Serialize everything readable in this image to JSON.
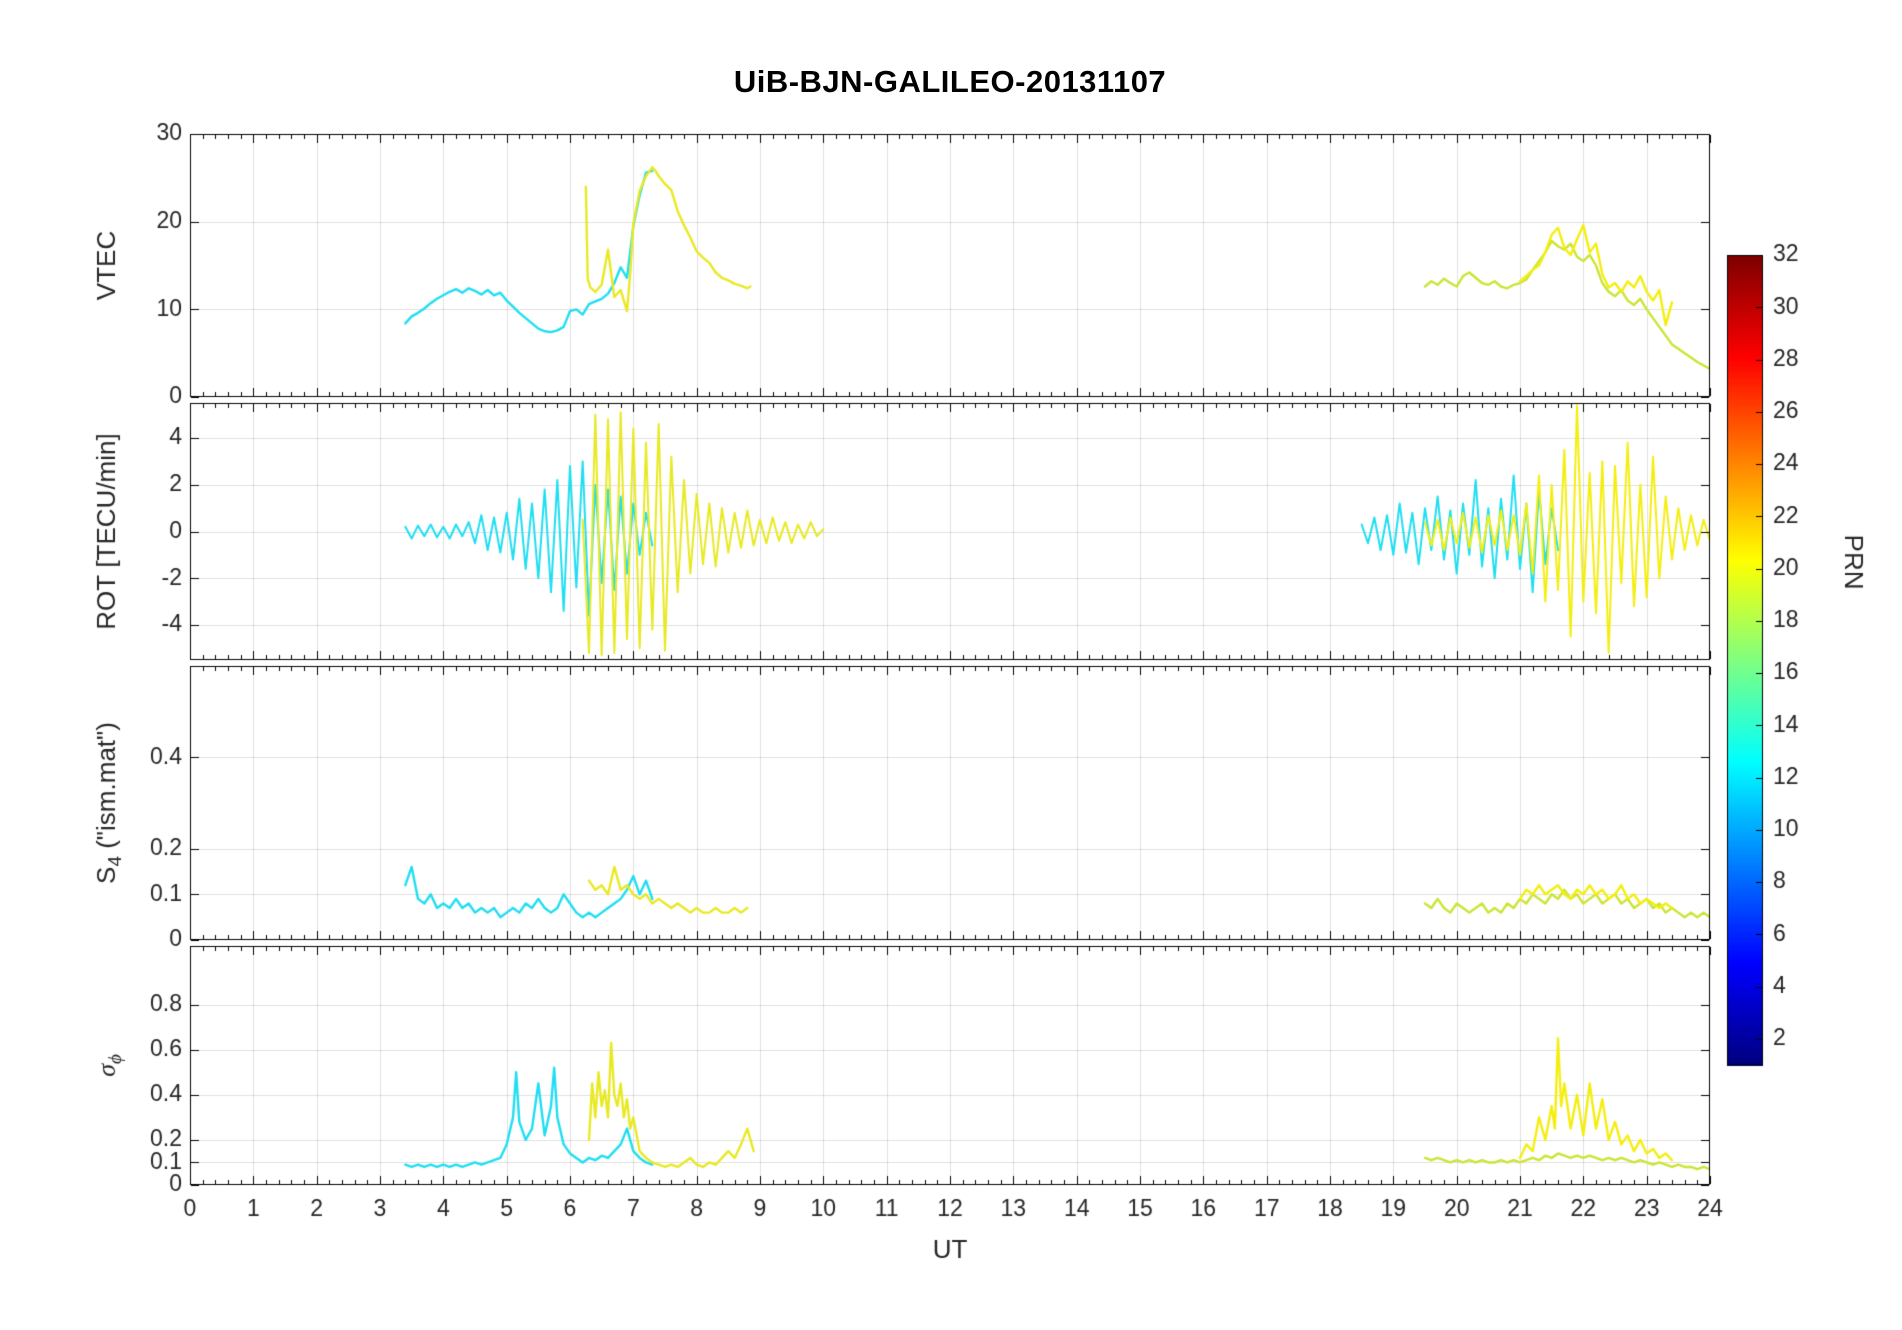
{
  "figure": {
    "background": "#ffffff",
    "axis_text_color": "#262626",
    "grid_color": "rgba(0,0,0,0.12)"
  },
  "chart_data": {
    "type": "line",
    "title": "UiB-BJN-GALILEO-20131107",
    "xlabel": "UT",
    "xlim": [
      0,
      24
    ],
    "xticks": [
      0,
      1,
      2,
      3,
      4,
      5,
      6,
      7,
      8,
      9,
      10,
      11,
      12,
      13,
      14,
      15,
      16,
      17,
      18,
      19,
      20,
      21,
      22,
      23,
      24
    ],
    "grid": true,
    "legend": "none",
    "colorbar": {
      "label": "PRN",
      "colormap": "jet",
      "range": [
        1,
        32
      ],
      "ticks": [
        2,
        4,
        6,
        8,
        10,
        12,
        14,
        16,
        18,
        20,
        22,
        24,
        26,
        28,
        30,
        32
      ]
    },
    "subplots": [
      {
        "name": "vtec",
        "ylabel_segments": [
          {
            "t": "VTEC"
          }
        ],
        "ylim": [
          0,
          30
        ],
        "yticks": [
          0,
          10,
          20,
          30
        ],
        "series": [
          {
            "name": "cyan-trace (PRN ~12)",
            "color": "#1fdef2",
            "x0": 3.4,
            "dx": 0.1,
            "y": [
              8.4,
              9.2,
              9.6,
              10.1,
              10.7,
              11.2,
              11.6,
              12.0,
              12.3,
              11.9,
              12.4,
              12.1,
              11.7,
              12.2,
              11.6,
              11.9,
              11.0,
              10.3,
              9.6,
              9.0,
              8.4,
              7.8,
              7.5,
              7.4,
              7.6,
              8.0,
              9.8,
              10.0,
              9.4,
              10.6,
              10.9,
              11.2,
              11.8,
              13.0,
              14.8,
              13.6,
              19.5,
              23.0,
              25.6,
              25.8
            ]
          },
          {
            "name": "yellow-trace morning (PRN ~20)",
            "color": "#e8e922",
            "x": [
              6.25,
              6.28,
              6.32,
              6.4,
              6.5,
              6.6,
              6.7,
              6.8,
              6.9,
              6.95,
              7.0,
              7.1,
              7.2,
              7.3,
              7.35,
              7.4,
              7.5,
              7.6,
              7.7,
              7.8,
              7.9,
              8.0,
              8.1,
              8.2,
              8.3,
              8.4,
              8.5,
              8.6,
              8.7,
              8.8,
              8.85
            ],
            "y": [
              24.0,
              13.5,
              12.5,
              12.0,
              12.8,
              16.8,
              11.4,
              12.2,
              9.8,
              14.0,
              19.8,
              23.5,
              25.2,
              26.2,
              25.8,
              25.2,
              24.3,
              23.6,
              21.2,
              19.6,
              18.2,
              16.6,
              15.9,
              15.3,
              14.2,
              13.6,
              13.3,
              12.9,
              12.7,
              12.4,
              12.6
            ]
          },
          {
            "name": "yellow-green-trace evening (PRN ~18)",
            "color": "#cbe433",
            "x0": 19.5,
            "dx": 0.1,
            "y": [
              12.6,
              13.2,
              12.8,
              13.5,
              13.0,
              12.6,
              13.8,
              14.2,
              13.6,
              13.0,
              12.8,
              13.2,
              12.6,
              12.4,
              12.8,
              13.0,
              13.4,
              14.5,
              15.5,
              16.5,
              17.8,
              17.2,
              16.8,
              17.5,
              16.0,
              15.5,
              16.2,
              15.0,
              13.0,
              12.0,
              11.5,
              12.2,
              11.0,
              10.5,
              11.2,
              10.0,
              9.0,
              8.0,
              7.0,
              6.0,
              5.5,
              5.0,
              4.5,
              4.0,
              3.6,
              3.2
            ]
          },
          {
            "name": "yellow-trace evening (PRN ~20)",
            "color": "#f4ee0f",
            "x0": 21.0,
            "dx": 0.1,
            "y": [
              13.2,
              13.8,
              14.5,
              15.0,
              16.5,
              18.5,
              19.3,
              17.0,
              16.2,
              18.0,
              19.6,
              16.5,
              17.5,
              14.0,
              12.5,
              13.0,
              12.0,
              13.2,
              12.5,
              13.8,
              12.0,
              11.0,
              12.2,
              8.2,
              10.8
            ]
          }
        ]
      },
      {
        "name": "rot",
        "ylabel_segments": [
          {
            "t": "ROT [TECU/min]"
          }
        ],
        "ylim": [
          -5.5,
          5.5
        ],
        "yticks": [
          -4,
          -2,
          0,
          2,
          4
        ],
        "series": [
          {
            "name": "cyan-trace (PRN ~12)",
            "color": "#1fdef2",
            "x0": 3.4,
            "dx": 0.1,
            "y": [
              0.2,
              -0.3,
              0.25,
              -0.2,
              0.3,
              -0.25,
              0.2,
              -0.3,
              0.3,
              -0.2,
              0.4,
              -0.5,
              0.7,
              -0.8,
              0.6,
              -0.9,
              0.8,
              -1.2,
              1.4,
              -1.6,
              1.2,
              -2.0,
              1.8,
              -2.6,
              2.2,
              -3.4,
              2.8,
              -2.4,
              3.0,
              -3.6,
              2.0,
              -2.2,
              1.8,
              -2.5,
              1.5,
              -1.8,
              1.2,
              -1.0,
              0.8,
              -0.6
            ]
          },
          {
            "name": "yellow-trace morning (PRN ~20)",
            "color": "#e8e922",
            "x0": 6.2,
            "dx": 0.1,
            "y": [
              0.5,
              -5.2,
              5.0,
              -5.3,
              4.8,
              -5.2,
              5.1,
              -4.6,
              4.4,
              -5.0,
              3.8,
              -4.2,
              4.6,
              -5.1,
              3.2,
              -2.6,
              2.2,
              -1.8,
              1.6,
              -1.4,
              1.2,
              -1.5,
              1.0,
              -0.9,
              0.8,
              -0.7,
              0.9,
              -0.6,
              0.5,
              -0.5,
              0.6,
              -0.4,
              0.4,
              -0.5,
              0.3,
              -0.3,
              0.4,
              -0.2,
              0.1
            ]
          },
          {
            "name": "cyan-trace evening (PRN ~12)",
            "color": "#1fdef2",
            "x0": 18.5,
            "dx": 0.1,
            "y": [
              0.3,
              -0.5,
              0.6,
              -0.8,
              0.7,
              -1.0,
              1.2,
              -0.9,
              0.8,
              -1.4,
              1.0,
              -0.8,
              1.5,
              -1.2,
              0.9,
              -1.8,
              1.2,
              -1.0,
              2.2,
              -1.5,
              1.0,
              -2.0,
              1.4,
              -1.2,
              2.4,
              -1.6,
              1.2,
              -2.6,
              1.8,
              -1.4,
              1.0,
              -0.8
            ]
          },
          {
            "name": "yellow-trace evening (PRN ~20)",
            "color": "#f4ee0f",
            "x0": 19.5,
            "dx": 0.1,
            "y": [
              0.4,
              -0.6,
              0.5,
              -0.8,
              0.6,
              -0.5,
              0.8,
              -0.7,
              0.6,
              -0.9,
              0.7,
              -0.6,
              0.9,
              -0.8,
              0.7,
              -1.0,
              1.2,
              -1.8,
              2.4,
              -3.0,
              2.0,
              -2.5,
              3.5,
              -4.5,
              5.4,
              -3.0,
              2.5,
              -3.5,
              3.0,
              -5.2,
              2.8,
              -2.2,
              3.8,
              -3.2,
              2.0,
              -2.8,
              3.2,
              -2.0,
              1.5,
              -1.2,
              1.0,
              -0.8,
              0.7,
              -0.6,
              0.5,
              -0.4
            ]
          }
        ]
      },
      {
        "name": "s4",
        "ylabel_segments": [
          {
            "t": "S"
          },
          {
            "t": "4",
            "sub": true
          },
          {
            "t": " (\"ism.mat\")"
          }
        ],
        "ylim": [
          0,
          0.6
        ],
        "yticks": [
          0,
          0.1,
          0.2,
          0.4
        ],
        "series": [
          {
            "name": "cyan-trace (PRN ~12)",
            "color": "#1fdef2",
            "x0": 3.4,
            "dx": 0.1,
            "y": [
              0.12,
              0.16,
              0.09,
              0.08,
              0.1,
              0.07,
              0.08,
              0.07,
              0.09,
              0.07,
              0.08,
              0.06,
              0.07,
              0.06,
              0.07,
              0.05,
              0.06,
              0.07,
              0.06,
              0.08,
              0.07,
              0.09,
              0.07,
              0.06,
              0.07,
              0.1,
              0.08,
              0.06,
              0.05,
              0.06,
              0.05,
              0.06,
              0.07,
              0.08,
              0.09,
              0.11,
              0.14,
              0.1,
              0.13,
              0.09
            ]
          },
          {
            "name": "yellow-trace morning (PRN ~20)",
            "color": "#e8e922",
            "x0": 6.3,
            "dx": 0.1,
            "y": [
              0.13,
              0.11,
              0.12,
              0.1,
              0.16,
              0.11,
              0.12,
              0.1,
              0.09,
              0.1,
              0.08,
              0.09,
              0.08,
              0.07,
              0.08,
              0.07,
              0.06,
              0.07,
              0.06,
              0.06,
              0.07,
              0.06,
              0.06,
              0.07,
              0.06,
              0.07
            ]
          },
          {
            "name": "yellow-green-trace evening (PRN ~18)",
            "color": "#cbe433",
            "x0": 19.5,
            "dx": 0.1,
            "y": [
              0.08,
              0.07,
              0.09,
              0.07,
              0.06,
              0.08,
              0.07,
              0.06,
              0.07,
              0.08,
              0.06,
              0.07,
              0.06,
              0.08,
              0.07,
              0.09,
              0.08,
              0.1,
              0.09,
              0.08,
              0.1,
              0.09,
              0.11,
              0.09,
              0.1,
              0.08,
              0.09,
              0.1,
              0.08,
              0.09,
              0.1,
              0.08,
              0.09,
              0.07,
              0.08,
              0.09,
              0.07,
              0.08,
              0.06,
              0.07,
              0.06,
              0.05,
              0.06,
              0.05,
              0.06,
              0.05
            ]
          },
          {
            "name": "yellow-trace evening (PRN ~20)",
            "color": "#f4ee0f",
            "x0": 21.0,
            "dx": 0.1,
            "y": [
              0.09,
              0.11,
              0.1,
              0.12,
              0.1,
              0.11,
              0.12,
              0.1,
              0.09,
              0.11,
              0.1,
              0.12,
              0.1,
              0.11,
              0.09,
              0.1,
              0.12,
              0.09,
              0.1,
              0.08,
              0.09,
              0.08,
              0.07,
              0.08,
              0.07
            ]
          }
        ]
      },
      {
        "name": "sigma-phi",
        "ylabel_segments": [
          {
            "t": "σ",
            "italic": true
          },
          {
            "t": "ϕ",
            "sub": true,
            "italic": true
          }
        ],
        "ylim": [
          0,
          1.06
        ],
        "yticks": [
          0,
          0.1,
          0.2,
          0.4,
          0.6,
          0.8
        ],
        "series": [
          {
            "name": "cyan-trace (PRN ~12)",
            "color": "#1fdef2",
            "x": [
              3.4,
              3.5,
              3.6,
              3.7,
              3.8,
              3.9,
              4.0,
              4.1,
              4.2,
              4.3,
              4.4,
              4.5,
              4.6,
              4.7,
              4.8,
              4.9,
              5.0,
              5.1,
              5.15,
              5.2,
              5.3,
              5.4,
              5.5,
              5.6,
              5.7,
              5.75,
              5.8,
              5.9,
              6.0,
              6.1,
              6.2,
              6.3,
              6.4,
              6.5,
              6.6,
              6.7,
              6.8,
              6.9,
              7.0,
              7.1,
              7.2,
              7.3
            ],
            "y": [
              0.09,
              0.08,
              0.09,
              0.08,
              0.09,
              0.08,
              0.09,
              0.08,
              0.09,
              0.08,
              0.09,
              0.1,
              0.09,
              0.1,
              0.11,
              0.12,
              0.18,
              0.3,
              0.5,
              0.28,
              0.2,
              0.25,
              0.45,
              0.22,
              0.35,
              0.52,
              0.3,
              0.18,
              0.14,
              0.12,
              0.1,
              0.12,
              0.11,
              0.13,
              0.12,
              0.15,
              0.18,
              0.25,
              0.15,
              0.12,
              0.1,
              0.09
            ]
          },
          {
            "name": "yellow-trace morning (PRN ~20)",
            "color": "#e8e922",
            "x": [
              6.3,
              6.35,
              6.4,
              6.45,
              6.5,
              6.55,
              6.6,
              6.65,
              6.7,
              6.75,
              6.8,
              6.85,
              6.9,
              6.95,
              7.0,
              7.1,
              7.2,
              7.3,
              7.4,
              7.5,
              7.6,
              7.7,
              7.8,
              7.9,
              8.0,
              8.1,
              8.2,
              8.3,
              8.4,
              8.5,
              8.6,
              8.7,
              8.8,
              8.9
            ],
            "y": [
              0.2,
              0.45,
              0.3,
              0.5,
              0.35,
              0.42,
              0.3,
              0.63,
              0.4,
              0.35,
              0.45,
              0.3,
              0.38,
              0.25,
              0.3,
              0.15,
              0.12,
              0.1,
              0.09,
              0.08,
              0.09,
              0.08,
              0.1,
              0.12,
              0.09,
              0.08,
              0.1,
              0.09,
              0.12,
              0.15,
              0.12,
              0.18,
              0.25,
              0.15
            ]
          },
          {
            "name": "yellow-green-trace evening (PRN ~18)",
            "color": "#cbe433",
            "x0": 19.5,
            "dx": 0.1,
            "y": [
              0.12,
              0.11,
              0.12,
              0.11,
              0.1,
              0.11,
              0.1,
              0.11,
              0.1,
              0.11,
              0.1,
              0.1,
              0.11,
              0.1,
              0.11,
              0.1,
              0.11,
              0.12,
              0.11,
              0.13,
              0.12,
              0.14,
              0.13,
              0.12,
              0.13,
              0.12,
              0.13,
              0.12,
              0.11,
              0.12,
              0.11,
              0.12,
              0.11,
              0.1,
              0.11,
              0.1,
              0.09,
              0.1,
              0.09,
              0.08,
              0.09,
              0.08,
              0.08,
              0.07,
              0.08,
              0.07
            ]
          },
          {
            "name": "yellow-trace evening (PRN ~20)",
            "color": "#f4ee0f",
            "x": [
              21.0,
              21.1,
              21.2,
              21.3,
              21.4,
              21.5,
              21.55,
              21.6,
              21.65,
              21.7,
              21.8,
              21.9,
              22.0,
              22.1,
              22.2,
              22.3,
              22.4,
              22.5,
              22.6,
              22.7,
              22.8,
              22.9,
              23.0,
              23.1,
              23.2,
              23.3,
              23.4
            ],
            "y": [
              0.12,
              0.18,
              0.15,
              0.3,
              0.2,
              0.35,
              0.25,
              0.65,
              0.35,
              0.45,
              0.25,
              0.4,
              0.22,
              0.45,
              0.25,
              0.38,
              0.2,
              0.28,
              0.18,
              0.22,
              0.15,
              0.2,
              0.14,
              0.16,
              0.12,
              0.14,
              0.11
            ]
          }
        ]
      }
    ]
  }
}
